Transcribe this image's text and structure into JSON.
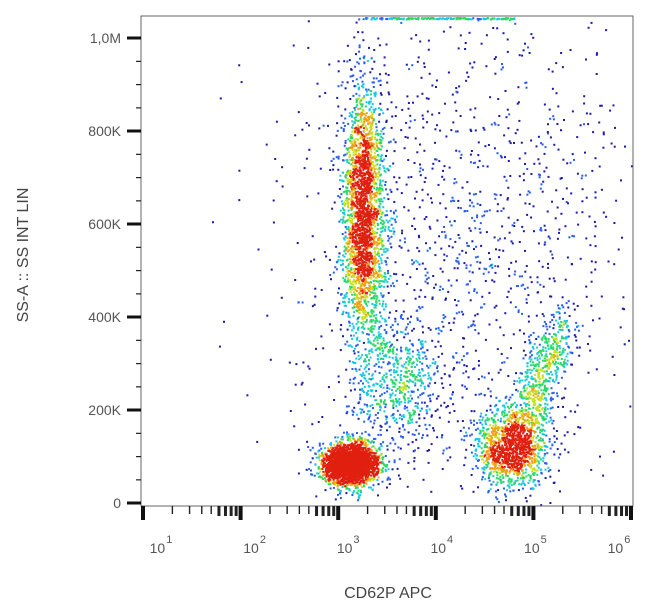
{
  "chart_data": {
    "type": "scatter",
    "subtype": "flow-cytometry density dot plot",
    "xlabel": "CD62P APC",
    "ylabel": "SS-A :: SS INT LIN",
    "x_scale": "log",
    "xlim": [
      10,
      1000000
    ],
    "ylim": [
      0,
      1050000
    ],
    "x_ticks": [
      {
        "value": 10,
        "base": "10",
        "exp": "1"
      },
      {
        "value": 100,
        "base": "10",
        "exp": "2"
      },
      {
        "value": 1000,
        "base": "10",
        "exp": "3"
      },
      {
        "value": 10000,
        "base": "10",
        "exp": "4"
      },
      {
        "value": 100000,
        "base": "10",
        "exp": "5"
      },
      {
        "value": 1000000,
        "base": "10",
        "exp": "6"
      }
    ],
    "y_ticks": [
      {
        "value": 0,
        "label": "0"
      },
      {
        "value": 200000,
        "label": "200K"
      },
      {
        "value": 400000,
        "label": "400K"
      },
      {
        "value": 600000,
        "label": "600K"
      },
      {
        "value": 800000,
        "label": "800K"
      },
      {
        "value": 1000000,
        "label": "1,0M"
      }
    ],
    "grid": false,
    "legend": "none",
    "density_colors": [
      "#1a1aa8",
      "#2a5cf0",
      "#19c8e0",
      "#2bd86a",
      "#c8e020",
      "#f0a010",
      "#e02010"
    ],
    "populations": [
      {
        "center_x": 1300,
        "center_y": 85000,
        "spread_log_x": 0.14,
        "spread_y": 22000,
        "events": 2600
      },
      {
        "center_x": 1800,
        "center_y": 620000,
        "spread_log_x": 0.11,
        "spread_y": 140000,
        "events": 2400
      },
      {
        "center_x": 60000,
        "center_y": 120000,
        "spread_log_x": 0.2,
        "spread_y": 45000,
        "events": 1800,
        "tail_to_x": 200000,
        "tail_to_y": 380000
      },
      {
        "center_x": 4000,
        "center_y": 260000,
        "spread_log_x": 0.25,
        "spread_y": 70000,
        "events": 600
      },
      {
        "center_x": 20000,
        "center_y": 550000,
        "spread_log_x": 0.9,
        "spread_y": 280000,
        "events": 1300
      }
    ]
  }
}
